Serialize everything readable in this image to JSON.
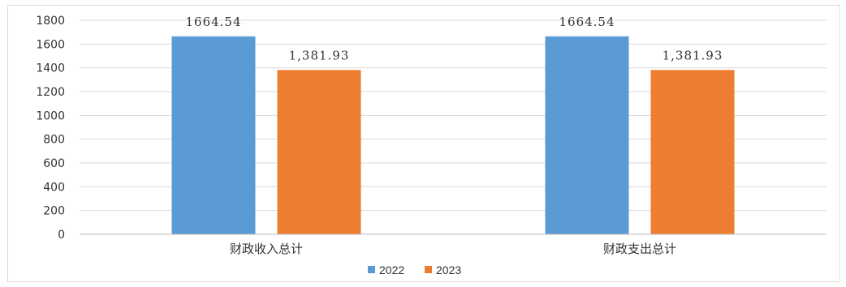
{
  "chart_data": {
    "type": "bar",
    "categories": [
      "财政收入总计",
      "财政支出总计"
    ],
    "series": [
      {
        "name": "2022",
        "color": "#5b9bd5",
        "values": [
          1664.54,
          1664.54
        ],
        "labels": [
          "1664.54",
          "1664.54"
        ]
      },
      {
        "name": "2023",
        "color": "#ed7d31",
        "values": [
          1381.93,
          1381.93
        ],
        "labels": [
          "1,381.93",
          "1,381.93"
        ]
      }
    ],
    "ylim": [
      0,
      1800
    ],
    "yticks": [
      "0",
      "200",
      "400",
      "600",
      "800",
      "1000",
      "1200",
      "1400",
      "1600",
      "1800"
    ],
    "grid": true,
    "legend_position": "bottom",
    "title": "",
    "xlabel": "",
    "ylabel": ""
  }
}
